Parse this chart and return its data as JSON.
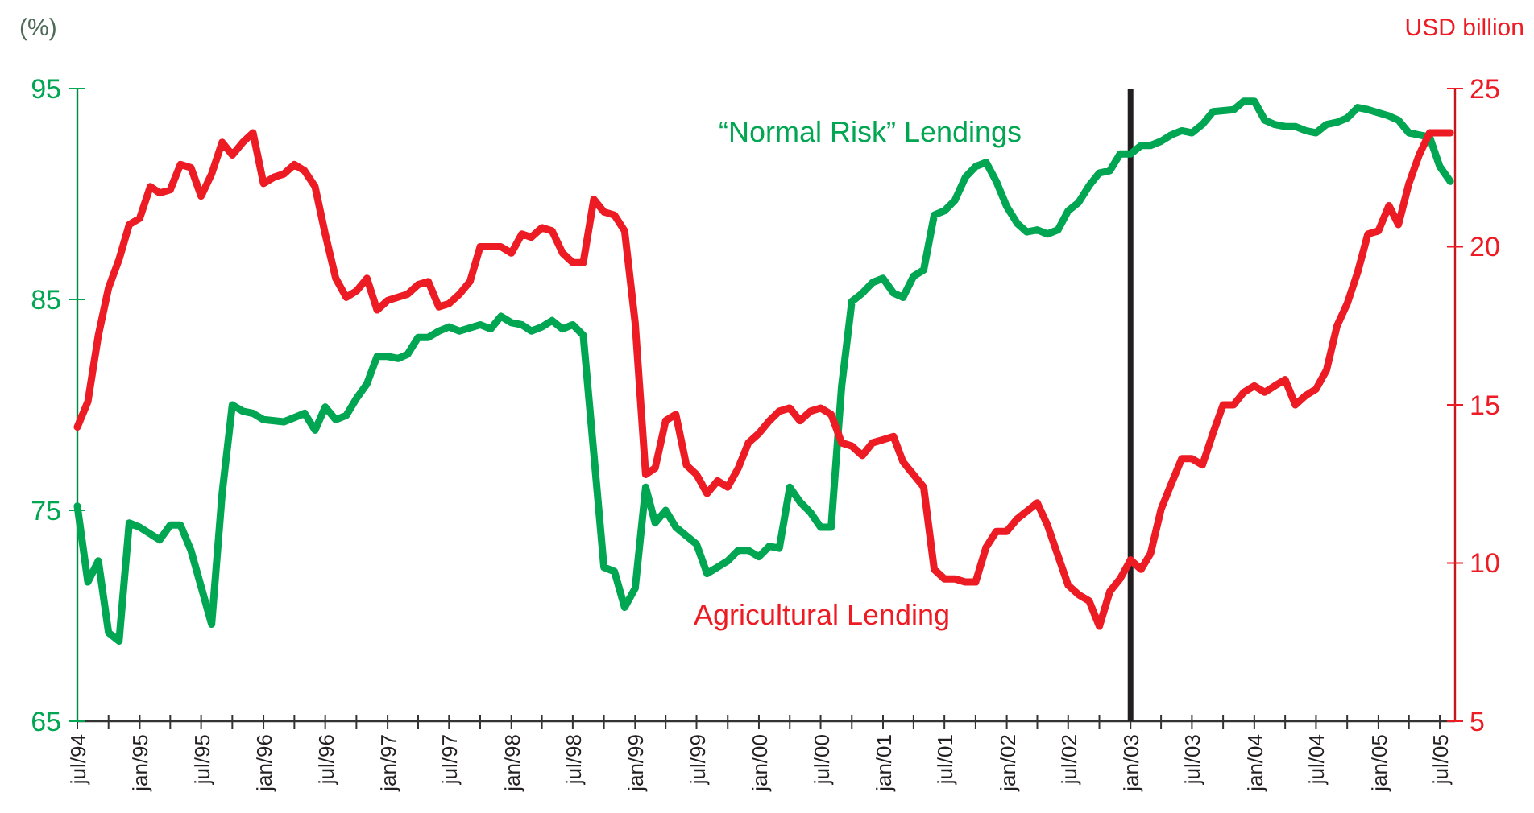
{
  "chart_data": {
    "type": "line",
    "ylabel": "(%)",
    "y2label": "USD billion",
    "xlim": [
      "1994-07",
      "2005-08-15"
    ],
    "ylim": [
      65,
      95
    ],
    "yticks": [
      65,
      75,
      85,
      95
    ],
    "y2lim": [
      5,
      25
    ],
    "y2ticks": [
      5,
      10,
      15,
      20,
      25
    ],
    "xticks": [
      {
        "value": "1994-07",
        "label": "jul/94"
      },
      {
        "value": "1994-10",
        "label": null
      },
      {
        "value": "1995-01",
        "label": "jan/95"
      },
      {
        "value": "1995-04",
        "label": null
      },
      {
        "value": "1995-07",
        "label": "jul/95"
      },
      {
        "value": "1995-10",
        "label": null
      },
      {
        "value": "1996-01",
        "label": "jan/96"
      },
      {
        "value": "1996-04",
        "label": null
      },
      {
        "value": "1996-07",
        "label": "jul/96"
      },
      {
        "value": "1996-10",
        "label": null
      },
      {
        "value": "1997-01",
        "label": "jan/97"
      },
      {
        "value": "1997-04",
        "label": null
      },
      {
        "value": "1997-07",
        "label": "jul/97"
      },
      {
        "value": "1997-10",
        "label": null
      },
      {
        "value": "1998-01",
        "label": "jan/98"
      },
      {
        "value": "1998-04",
        "label": null
      },
      {
        "value": "1998-07",
        "label": "jul/98"
      },
      {
        "value": "1998-10",
        "label": null
      },
      {
        "value": "1999-01",
        "label": "jan/99"
      },
      {
        "value": "1999-04",
        "label": null
      },
      {
        "value": "1999-07",
        "label": "jul/99"
      },
      {
        "value": "1999-10",
        "label": null
      },
      {
        "value": "2000-01",
        "label": "jan/00"
      },
      {
        "value": "2000-04",
        "label": null
      },
      {
        "value": "2000-07",
        "label": "jul/00"
      },
      {
        "value": "2000-10",
        "label": null
      },
      {
        "value": "2001-01",
        "label": "jan/01"
      },
      {
        "value": "2001-04",
        "label": null
      },
      {
        "value": "2001-07",
        "label": "jul/01"
      },
      {
        "value": "2001-10",
        "label": null
      },
      {
        "value": "2002-01",
        "label": "jan/02"
      },
      {
        "value": "2002-04",
        "label": null
      },
      {
        "value": "2002-07",
        "label": "jul/02"
      },
      {
        "value": "2002-10",
        "label": null
      },
      {
        "value": "2003-01",
        "label": "jan/03"
      },
      {
        "value": "2003-04",
        "label": null
      },
      {
        "value": "2003-07",
        "label": "jul/03"
      },
      {
        "value": "2003-10",
        "label": null
      },
      {
        "value": "2004-01",
        "label": "jan/04"
      },
      {
        "value": "2004-04",
        "label": null
      },
      {
        "value": "2004-07",
        "label": "jul/04"
      },
      {
        "value": "2004-10",
        "label": null
      },
      {
        "value": "2005-01",
        "label": "jan/05"
      },
      {
        "value": "2005-04",
        "label": null
      },
      {
        "value": "2005-07",
        "label": "jul/05"
      }
    ],
    "grid": false,
    "legend": false,
    "marker": "none",
    "line_style": "solid",
    "ref_lines": [
      {
        "axis": "x",
        "value": "2003-01",
        "color": "#231f20"
      }
    ],
    "series": [
      {
        "name": "“Normal Risk” Lendings",
        "color": "#00a651",
        "axis": "y",
        "x": [
          "1994-07",
          "1994-08",
          "1994-09",
          "1994-10",
          "1994-11",
          "1994-12",
          "1995-01",
          "1995-03",
          "1995-04",
          "1995-05",
          "1995-06",
          "1995-08",
          "1995-09",
          "1995-10",
          "1995-11",
          "1995-12",
          "1996-01",
          "1996-03",
          "1996-04",
          "1996-05",
          "1996-06",
          "1996-07",
          "1996-08",
          "1996-09",
          "1996-10",
          "1996-11",
          "1996-12",
          "1997-01",
          "1997-02",
          "1997-03",
          "1997-04",
          "1997-05",
          "1997-06",
          "1997-07",
          "1997-08",
          "1997-10",
          "1997-11",
          "1997-12",
          "1998-01",
          "1998-02",
          "1998-03",
          "1998-04",
          "1998-05",
          "1998-06",
          "1998-07",
          "1998-08",
          "1998-10",
          "1998-11",
          "1998-12",
          "1999-01",
          "1999-02",
          "1999-03",
          "1999-04",
          "1999-05",
          "1999-07",
          "1999-08",
          "1999-10",
          "1999-11",
          "1999-12",
          "2000-01",
          "2000-02",
          "2000-03",
          "2000-04",
          "2000-05",
          "2000-06",
          "2000-07",
          "2000-08",
          "2000-09",
          "2000-10",
          "2000-11",
          "2000-12",
          "2001-01",
          "2001-02",
          "2001-03",
          "2001-04",
          "2001-05",
          "2001-06",
          "2001-07",
          "2001-08",
          "2001-09",
          "2001-10",
          "2001-11",
          "2001-12",
          "2002-01",
          "2002-02",
          "2002-03",
          "2002-04",
          "2002-05",
          "2002-06",
          "2002-07",
          "2002-08",
          "2002-09",
          "2002-10",
          "2002-11",
          "2002-12",
          "2003-01",
          "2003-02",
          "2003-03",
          "2003-04",
          "2003-05",
          "2003-06",
          "2003-07",
          "2003-08",
          "2003-09",
          "2003-11",
          "2003-12",
          "2004-01",
          "2004-02",
          "2004-03",
          "2004-04",
          "2004-05",
          "2004-06",
          "2004-07",
          "2004-08",
          "2004-09",
          "2004-10",
          "2004-11",
          "2004-12",
          "2005-02",
          "2005-03",
          "2005-04",
          "2005-05",
          "2005-06",
          "2005-07",
          "2005-08"
        ],
        "values": [
          75.2,
          71.6,
          72.6,
          69.2,
          68.8,
          74.4,
          74.2,
          73.6,
          74.3,
          74.3,
          73.1,
          69.6,
          75.8,
          80,
          79.7,
          79.6,
          79.3,
          79.2,
          79.4,
          79.6,
          78.8,
          79.9,
          79.3,
          79.5,
          80.3,
          81,
          82.3,
          82.3,
          82.2,
          82.4,
          83.2,
          83.2,
          83.5,
          83.7,
          83.5,
          83.8,
          83.6,
          84.2,
          83.9,
          83.8,
          83.5,
          83.7,
          84,
          83.6,
          83.8,
          83.3,
          72.3,
          72.1,
          70.4,
          71.3,
          76.1,
          74.4,
          75,
          74.2,
          73.4,
          72,
          72.6,
          73.1,
          73.1,
          72.8,
          73.3,
          73.2,
          76.1,
          75.4,
          74.9,
          74.2,
          74.2,
          80.9,
          84.9,
          85.3,
          85.8,
          86,
          85.3,
          85.1,
          86.1,
          86.4,
          89,
          89.2,
          89.7,
          90.8,
          91.3,
          91.5,
          90.6,
          89.4,
          88.6,
          88.2,
          88.3,
          88.1,
          88.3,
          89.2,
          89.6,
          90.4,
          91,
          91.1,
          91.9,
          91.9,
          92.3,
          92.3,
          92.5,
          92.8,
          93,
          92.9,
          93.3,
          93.9,
          94,
          94.4,
          94.4,
          93.5,
          93.3,
          93.2,
          93.2,
          93,
          92.9,
          93.3,
          93.4,
          93.6,
          94.1,
          94,
          93.7,
          93.5,
          92.9,
          92.8,
          92.7,
          91.3,
          90.6
        ]
      },
      {
        "name": "Agricultural Lending",
        "color": "#ed1c24",
        "axis": "y2",
        "x": [
          "1994-07",
          "1994-08",
          "1994-09",
          "1994-10",
          "1994-11",
          "1994-12",
          "1995-01",
          "1995-02",
          "1995-03",
          "1995-04",
          "1995-05",
          "1995-06",
          "1995-07",
          "1995-08",
          "1995-09",
          "1995-10",
          "1995-11",
          "1995-12",
          "1996-01",
          "1996-02",
          "1996-03",
          "1996-04",
          "1996-05",
          "1996-06",
          "1996-07",
          "1996-08",
          "1996-09",
          "1996-10",
          "1996-11",
          "1996-12",
          "1997-01",
          "1997-03",
          "1997-04",
          "1997-05",
          "1997-06",
          "1997-07",
          "1997-08",
          "1997-09",
          "1997-10",
          "1997-11",
          "1997-12",
          "1998-01",
          "1998-02",
          "1998-03",
          "1998-04",
          "1998-05",
          "1998-06",
          "1998-07",
          "1998-08",
          "1998-09",
          "1998-10",
          "1998-11",
          "1998-12",
          "1999-01",
          "1999-02",
          "1999-03",
          "1999-04",
          "1999-05",
          "1999-06",
          "1999-07",
          "1999-08",
          "1999-09",
          "1999-10",
          "1999-11",
          "1999-12",
          "2000-01",
          "2000-02",
          "2000-03",
          "2000-04",
          "2000-05",
          "2000-06",
          "2000-07",
          "2000-08",
          "2000-09",
          "2000-10",
          "2000-11",
          "2000-12",
          "2001-01",
          "2001-02",
          "2001-03",
          "2001-05",
          "2001-06",
          "2001-07",
          "2001-08",
          "2001-09",
          "2001-10",
          "2001-11",
          "2001-12",
          "2002-01",
          "2002-02",
          "2002-04",
          "2002-05",
          "2002-07",
          "2002-08",
          "2002-09",
          "2002-10",
          "2002-11",
          "2002-12",
          "2003-01",
          "2003-02",
          "2003-03",
          "2003-04",
          "2003-05",
          "2003-06",
          "2003-07",
          "2003-08",
          "2003-09",
          "2003-10",
          "2003-11",
          "2003-12",
          "2004-01",
          "2004-02",
          "2004-03",
          "2004-04",
          "2004-05",
          "2004-06",
          "2004-07",
          "2004-08",
          "2004-09",
          "2004-10",
          "2004-11",
          "2004-12",
          "2005-01",
          "2005-02",
          "2005-03",
          "2005-04",
          "2005-05",
          "2005-06",
          "2005-07",
          "2005-08"
        ],
        "values": [
          14.3,
          15.1,
          17.2,
          18.7,
          19.6,
          20.7,
          20.9,
          21.9,
          21.7,
          21.8,
          22.6,
          22.5,
          21.6,
          22.3,
          23.3,
          22.9,
          23.3,
          23.6,
          22,
          22.2,
          22.3,
          22.6,
          22.4,
          21.9,
          20.4,
          19,
          18.4,
          18.6,
          19,
          18,
          18.3,
          18.5,
          18.8,
          18.9,
          18.1,
          18.2,
          18.5,
          18.9,
          20,
          20,
          20,
          19.8,
          20.4,
          20.3,
          20.6,
          20.5,
          19.8,
          19.5,
          19.5,
          21.5,
          21.1,
          21,
          20.5,
          17.6,
          12.8,
          13,
          14.5,
          14.7,
          13.1,
          12.8,
          12.2,
          12.6,
          12.4,
          13,
          13.8,
          14.1,
          14.5,
          14.8,
          14.9,
          14.5,
          14.8,
          14.9,
          14.7,
          13.8,
          13.7,
          13.4,
          13.8,
          13.9,
          14,
          13.2,
          12.4,
          9.8,
          9.5,
          9.5,
          9.4,
          9.4,
          10.5,
          11,
          11,
          11.4,
          11.9,
          11.2,
          9.3,
          9,
          8.8,
          8,
          9.1,
          9.5,
          10.1,
          9.8,
          10.3,
          11.7,
          12.5,
          13.3,
          13.3,
          13.1,
          14.1,
          15,
          15,
          15.4,
          15.6,
          15.4,
          15.6,
          15.8,
          15,
          15.3,
          15.5,
          16.1,
          17.5,
          18.2,
          19.2,
          20.4,
          20.5,
          21.3,
          20.7,
          22,
          22.9,
          23.6,
          23.6,
          23.6
        ]
      }
    ]
  }
}
